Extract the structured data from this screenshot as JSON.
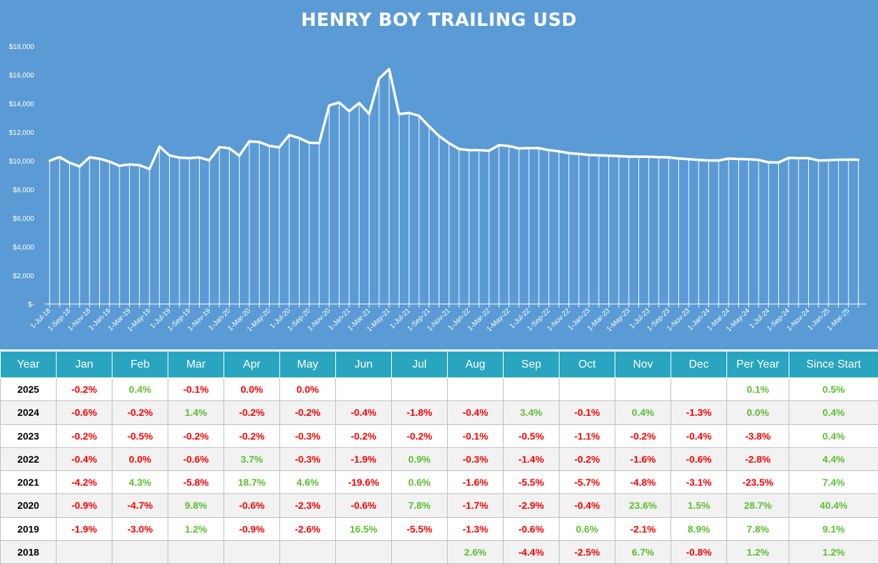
{
  "chart_data": {
    "type": "area",
    "title": "HENRY BOY TRAILING USD",
    "xlabel": "",
    "ylabel": "",
    "ylim": [
      0,
      18000
    ],
    "yticks": [
      "$-",
      "$2,000",
      "$4,000",
      "$6,000",
      "$8,000",
      "$10,000",
      "$12,000",
      "$14,000",
      "$16,000",
      "$18,000"
    ],
    "xtick_labels": [
      "1-Jul-18",
      "1-Sep-18",
      "1-Nov-18",
      "1-Jan-19",
      "1-Mar-19",
      "1-May-19",
      "1-Jul-19",
      "1-Sep-19",
      "1-Nov-19",
      "1-Jan-20",
      "1-Mar-20",
      "1-May-20",
      "1-Jul-20",
      "1-Sep-20",
      "1-Nov-20",
      "1-Jan-21",
      "1-Mar-21",
      "1-May-21",
      "1-Jul-21",
      "1-Sep-21",
      "1-Nov-21",
      "1-Jan-22",
      "1-Mar-22",
      "1-May-22",
      "1-Jul-22",
      "1-Sep-22",
      "1-Nov-22",
      "1-Jan-23",
      "1-Mar-23",
      "1-May-23",
      "1-Jul-23",
      "1-Sep-23",
      "1-Nov-23",
      "1-Jan-24",
      "1-Mar-24",
      "1-May-24",
      "1-Jul-24",
      "1-Sep-24",
      "1-Nov-24",
      "1-Jan-25",
      "1-Mar-25"
    ],
    "grid": false,
    "colors": {
      "background": "#5B9BD5",
      "line": "#ffffff"
    },
    "series": [
      {
        "values": [
          10000,
          10260,
          9860,
          9600,
          10240,
          10140,
          9940,
          9650,
          9740,
          9690,
          9420,
          10990,
          10370,
          10220,
          10180,
          10230,
          10030,
          10950,
          10880,
          10350,
          11350,
          11300,
          11040,
          10930,
          11790,
          11580,
          11260,
          11230,
          13860,
          14070,
          13460,
          14030,
          13270,
          15730,
          16400,
          13260,
          13340,
          13130,
          12400,
          11720,
          11230,
          10820,
          10740,
          10740,
          10700,
          11090,
          11030,
          10860,
          10890,
          10880,
          10740,
          10660,
          10530,
          10480,
          10410,
          10380,
          10350,
          10320,
          10290,
          10290,
          10280,
          10250,
          10230,
          10160,
          10110,
          10060,
          10020,
          10020,
          10150,
          10120,
          10100,
          10060,
          9890,
          9880,
          10200,
          10180,
          10180,
          10020,
          10040,
          10070,
          10080,
          10070
        ]
      }
    ]
  },
  "table": {
    "headers": [
      "Year",
      "Jan",
      "Feb",
      "Mar",
      "Apr",
      "May",
      "Jun",
      "Jul",
      "Aug",
      "Sep",
      "Oct",
      "Nov",
      "Dec",
      "Per Year",
      "Since Start"
    ],
    "rows": [
      {
        "year": "2025",
        "cells": [
          "-0.2%",
          "0.4%",
          "-0.1%",
          "0.0%",
          "0.0%",
          "",
          "",
          "",
          "",
          "",
          "",
          "",
          "0.1%",
          "0.5%"
        ],
        "tone": [
          "neg",
          "pos",
          "neg",
          "neg",
          "neg",
          "",
          "",
          "",
          "",
          "",
          "",
          "",
          "pos",
          "pos"
        ]
      },
      {
        "year": "2024",
        "cells": [
          "-0.6%",
          "-0.2%",
          "1.4%",
          "-0.2%",
          "-0.2%",
          "-0.4%",
          "-1.8%",
          "-0.4%",
          "3.4%",
          "-0.1%",
          "0.4%",
          "-1.3%",
          "0.0%",
          "0.4%"
        ],
        "tone": [
          "neg",
          "neg",
          "pos",
          "neg",
          "neg",
          "neg",
          "neg",
          "neg",
          "pos",
          "neg",
          "pos",
          "neg",
          "pos",
          "pos"
        ]
      },
      {
        "year": "2023",
        "cells": [
          "-0.2%",
          "-0.5%",
          "-0.2%",
          "-0.2%",
          "-0.3%",
          "-0.2%",
          "-0.2%",
          "-0.1%",
          "-0.5%",
          "-1.1%",
          "-0.2%",
          "-0.4%",
          "-3.8%",
          "0.4%"
        ],
        "tone": [
          "neg",
          "neg",
          "neg",
          "neg",
          "neg",
          "neg",
          "neg",
          "neg",
          "neg",
          "neg",
          "neg",
          "neg",
          "neg",
          "pos"
        ]
      },
      {
        "year": "2022",
        "cells": [
          "-0.4%",
          "0.0%",
          "-0.6%",
          "3.7%",
          "-0.3%",
          "-1.9%",
          "0.9%",
          "-0.3%",
          "-1.4%",
          "-0.2%",
          "-1.6%",
          "-0.6%",
          "-2.8%",
          "4.4%"
        ],
        "tone": [
          "neg",
          "neg",
          "neg",
          "pos",
          "neg",
          "neg",
          "pos",
          "neg",
          "neg",
          "neg",
          "neg",
          "neg",
          "neg",
          "pos"
        ]
      },
      {
        "year": "2021",
        "cells": [
          "-4.2%",
          "4.3%",
          "-5.8%",
          "18.7%",
          "4.6%",
          "-19.6%",
          "0.6%",
          "-1.6%",
          "-5.5%",
          "-5.7%",
          "-4.8%",
          "-3.1%",
          "-23.5%",
          "7.4%"
        ],
        "tone": [
          "neg",
          "pos",
          "neg",
          "pos",
          "pos",
          "neg",
          "pos",
          "neg",
          "neg",
          "neg",
          "neg",
          "neg",
          "neg",
          "pos"
        ]
      },
      {
        "year": "2020",
        "cells": [
          "-0.9%",
          "-4.7%",
          "9.8%",
          "-0.6%",
          "-2.3%",
          "-0.6%",
          "7.8%",
          "-1.7%",
          "-2.9%",
          "-0.4%",
          "23.6%",
          "1.5%",
          "28.7%",
          "40.4%"
        ],
        "tone": [
          "neg",
          "neg",
          "pos",
          "neg",
          "neg",
          "neg",
          "pos",
          "neg",
          "neg",
          "neg",
          "pos",
          "pos",
          "pos",
          "pos"
        ]
      },
      {
        "year": "2019",
        "cells": [
          "-1.9%",
          "-3.0%",
          "1.2%",
          "-0.9%",
          "-2.6%",
          "16.5%",
          "-5.5%",
          "-1.3%",
          "-0.6%",
          "0.6%",
          "-2.1%",
          "8.9%",
          "7.8%",
          "9.1%"
        ],
        "tone": [
          "neg",
          "neg",
          "pos",
          "neg",
          "neg",
          "pos",
          "neg",
          "neg",
          "neg",
          "pos",
          "neg",
          "pos",
          "pos",
          "pos"
        ]
      },
      {
        "year": "2018",
        "cells": [
          "",
          "",
          "",
          "",
          "",
          "",
          "",
          "2.6%",
          "-4.4%",
          "-2.5%",
          "6.7%",
          "-0.8%",
          "1.2%",
          "1.2%"
        ],
        "tone": [
          "",
          "",
          "",
          "",
          "",
          "",
          "",
          "pos",
          "neg",
          "neg",
          "pos",
          "neg",
          "pos",
          "pos"
        ]
      }
    ]
  }
}
